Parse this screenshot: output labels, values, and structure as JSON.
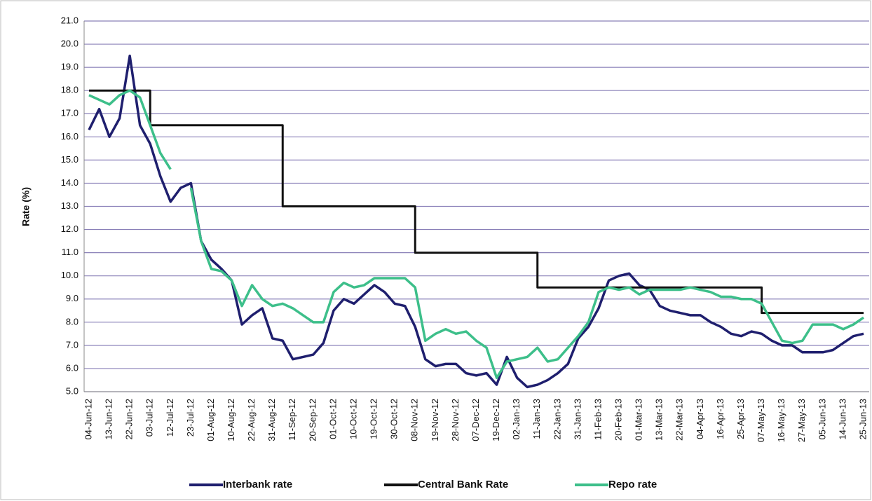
{
  "chart_data": {
    "type": "line",
    "y_label": "Rate (%)",
    "categories": [
      "04-Jun-12",
      null,
      "13-Jun-12",
      null,
      "22-Jun-12",
      null,
      "03-Jul-12",
      null,
      "12-Jul-12",
      null,
      "23-Jul-12",
      null,
      "01-Aug-12",
      null,
      "10-Aug-12",
      null,
      "22-Aug-12",
      null,
      "31-Aug-12",
      null,
      "11-Sep-12",
      null,
      "20-Sep-12",
      null,
      "01-Oct-12",
      null,
      "10-Oct-12",
      null,
      "19-Oct-12",
      null,
      "30-Oct-12",
      null,
      "08-Nov-12",
      null,
      "19-Nov-12",
      null,
      "28-Nov-12",
      null,
      "07-Dec-12",
      null,
      "19-Dec-12",
      null,
      "02-Jan-13",
      null,
      "11-Jan-13",
      null,
      "22-Jan-13",
      null,
      "31-Jan-13",
      null,
      "11-Feb-13",
      null,
      "20-Feb-13",
      null,
      "01-Mar-13",
      null,
      "13-Mar-13",
      null,
      "22-Mar-13",
      null,
      "04-Apr-13",
      null,
      "16-Apr-13",
      null,
      "25-Apr-13",
      null,
      "07-May-13",
      null,
      "16-May-13",
      null,
      "27-May-13",
      null,
      "05-Jun-13",
      null,
      "14-Jun-13",
      null,
      "25-Jun-13"
    ],
    "series": [
      {
        "name": "Interbank rate",
        "color": "#1f1f6e",
        "values": [
          16.3,
          17.2,
          16.0,
          16.8,
          19.5,
          16.5,
          15.7,
          14.3,
          13.2,
          13.8,
          14.0,
          11.5,
          10.7,
          10.3,
          9.8,
          7.9,
          8.3,
          8.6,
          7.3,
          7.2,
          6.4,
          6.5,
          6.6,
          7.1,
          8.5,
          9.0,
          8.8,
          9.2,
          9.6,
          9.3,
          8.8,
          8.7,
          7.8,
          6.4,
          6.1,
          6.2,
          6.2,
          5.8,
          5.7,
          5.8,
          5.3,
          6.5,
          5.6,
          5.2,
          5.3,
          5.5,
          5.8,
          6.2,
          7.3,
          7.8,
          8.6,
          9.8,
          10.0,
          10.1,
          9.6,
          9.4,
          8.7,
          8.5,
          8.4,
          8.3,
          8.3,
          8.0,
          7.8,
          7.5,
          7.4,
          7.6,
          7.5,
          7.2,
          7.0,
          7.0,
          6.7,
          6.7,
          6.7,
          6.8,
          7.1,
          7.4,
          7.5
        ]
      },
      {
        "name": "Central Bank Rate",
        "color": "#111111",
        "step": true,
        "values": [
          18,
          18,
          18,
          18,
          18,
          18,
          16.5,
          16.5,
          16.5,
          16.5,
          16.5,
          16.5,
          16.5,
          16.5,
          16.5,
          16.5,
          16.5,
          16.5,
          16.5,
          13,
          13,
          13,
          13,
          13,
          13,
          13,
          13,
          13,
          13,
          13,
          13,
          13,
          11,
          11,
          11,
          11,
          11,
          11,
          11,
          11,
          11,
          11,
          11,
          11,
          9.5,
          9.5,
          9.5,
          9.5,
          9.5,
          9.5,
          9.5,
          9.5,
          9.5,
          9.5,
          9.5,
          9.5,
          9.5,
          9.5,
          9.5,
          9.5,
          9.5,
          9.5,
          9.5,
          9.5,
          9.5,
          9.5,
          8.4,
          8.4,
          8.4,
          8.4,
          8.4,
          8.4,
          8.4,
          8.4,
          8.4,
          8.4,
          8.4
        ]
      },
      {
        "name": "Repo rate",
        "color": "#3dbf8a",
        "values": [
          17.8,
          17.6,
          17.4,
          17.8,
          18.0,
          17.7,
          16.5,
          15.3,
          14.6,
          null,
          13.8,
          11.5,
          10.3,
          10.2,
          9.8,
          8.7,
          9.6,
          9.0,
          8.7,
          8.8,
          8.6,
          8.3,
          8.0,
          8.0,
          9.3,
          9.7,
          9.5,
          9.6,
          9.9,
          9.9,
          9.9,
          9.9,
          9.5,
          7.2,
          7.5,
          7.7,
          7.5,
          7.6,
          7.2,
          6.9,
          5.6,
          6.3,
          6.4,
          6.5,
          6.9,
          6.3,
          6.4,
          6.9,
          7.4,
          8.0,
          9.3,
          9.5,
          9.4,
          9.5,
          9.2,
          9.4,
          9.4,
          9.4,
          9.4,
          9.5,
          9.4,
          9.3,
          9.1,
          9.1,
          9.0,
          9.0,
          8.8,
          8.0,
          7.2,
          7.1,
          7.2,
          7.9,
          7.9,
          7.9,
          7.7,
          7.9,
          8.2
        ]
      }
    ],
    "ylim": [
      5,
      21
    ],
    "yticks": [
      {
        "value": 5,
        "label": "5.0"
      },
      {
        "value": 6,
        "label": "6.0"
      },
      {
        "value": 7,
        "label": "7.0"
      },
      {
        "value": 8,
        "label": "8.0"
      },
      {
        "value": 9,
        "label": "9.0"
      },
      {
        "value": 10,
        "label": "10.0"
      },
      {
        "value": 11,
        "label": "11.0"
      },
      {
        "value": 12,
        "label": "12.0"
      },
      {
        "value": 13,
        "label": "13.0"
      },
      {
        "value": 14,
        "label": "14.0"
      },
      {
        "value": 15,
        "label": "15.0"
      },
      {
        "value": 16,
        "label": "16.0"
      },
      {
        "value": 17,
        "label": "17.0"
      },
      {
        "value": 18,
        "label": "18.0"
      },
      {
        "value": 19,
        "label": "19.0"
      },
      {
        "value": 20,
        "label": "20.0"
      },
      {
        "value": 21,
        "label": "21.0"
      }
    ],
    "grid": true,
    "grid_color": "#8a80b8",
    "legend": "bottom"
  }
}
